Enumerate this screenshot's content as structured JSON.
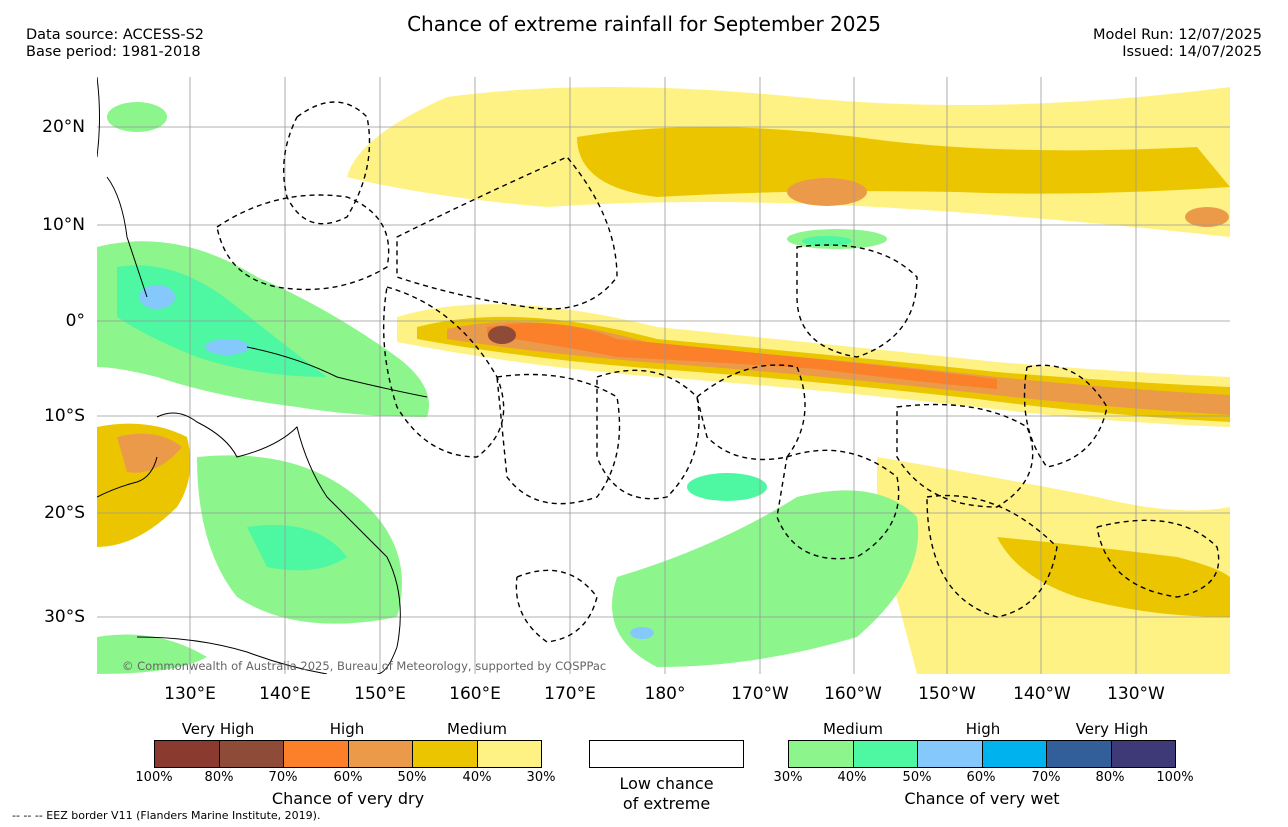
{
  "header": {
    "title": "Chance of extreme rainfall for September 2025",
    "data_source": "Data source: ACCESS-S2",
    "base_period": "Base period: 1981-2018",
    "model_run": "Model Run: 12/07/2025",
    "issued": "Issued: 14/07/2025"
  },
  "map": {
    "lat_labels": [
      "20°N",
      "10°N",
      "0°",
      "10°S",
      "20°S",
      "30°S"
    ],
    "lon_labels": [
      "130°E",
      "140°E",
      "150°E",
      "160°E",
      "170°E",
      "180°",
      "170°W",
      "160°W",
      "150°W",
      "140°W",
      "130°W"
    ],
    "copyright": "© Commonwealth of Australia 2025, Bureau of Meteorology, supported by COSPPac",
    "colors": {
      "very_high_dry_1": "#8b3a2f",
      "very_high_dry_2": "#8e4b38",
      "high_dry_1": "#fc7f29",
      "high_dry_2": "#eb9a4a",
      "medium_dry_1": "#ebc600",
      "medium_dry_2": "#fff285",
      "medium_wet_1": "#8cf58c",
      "medium_wet_2": "#4ef7a2",
      "high_wet_1": "#84c8fc",
      "high_wet_2": "#00b2ee",
      "very_high_wet_1": "#325e9a",
      "very_high_wet_2": "#3e3a78"
    }
  },
  "legend_dry": {
    "categories": [
      "Very High",
      "High",
      "Medium"
    ],
    "ticks": [
      "100%",
      "80%",
      "70%",
      "60%",
      "50%",
      "40%",
      "30%"
    ],
    "title": "Chance of very dry"
  },
  "legend_low": {
    "line1": "Low chance",
    "line2": "of extreme"
  },
  "legend_wet": {
    "categories": [
      "Medium",
      "High",
      "Very High"
    ],
    "ticks": [
      "30%",
      "40%",
      "50%",
      "60%",
      "70%",
      "80%",
      "100%"
    ],
    "title": "Chance of very wet"
  },
  "footnote": "-- -- -- EEZ border V11 (Flanders Marine Institute, 2019)."
}
